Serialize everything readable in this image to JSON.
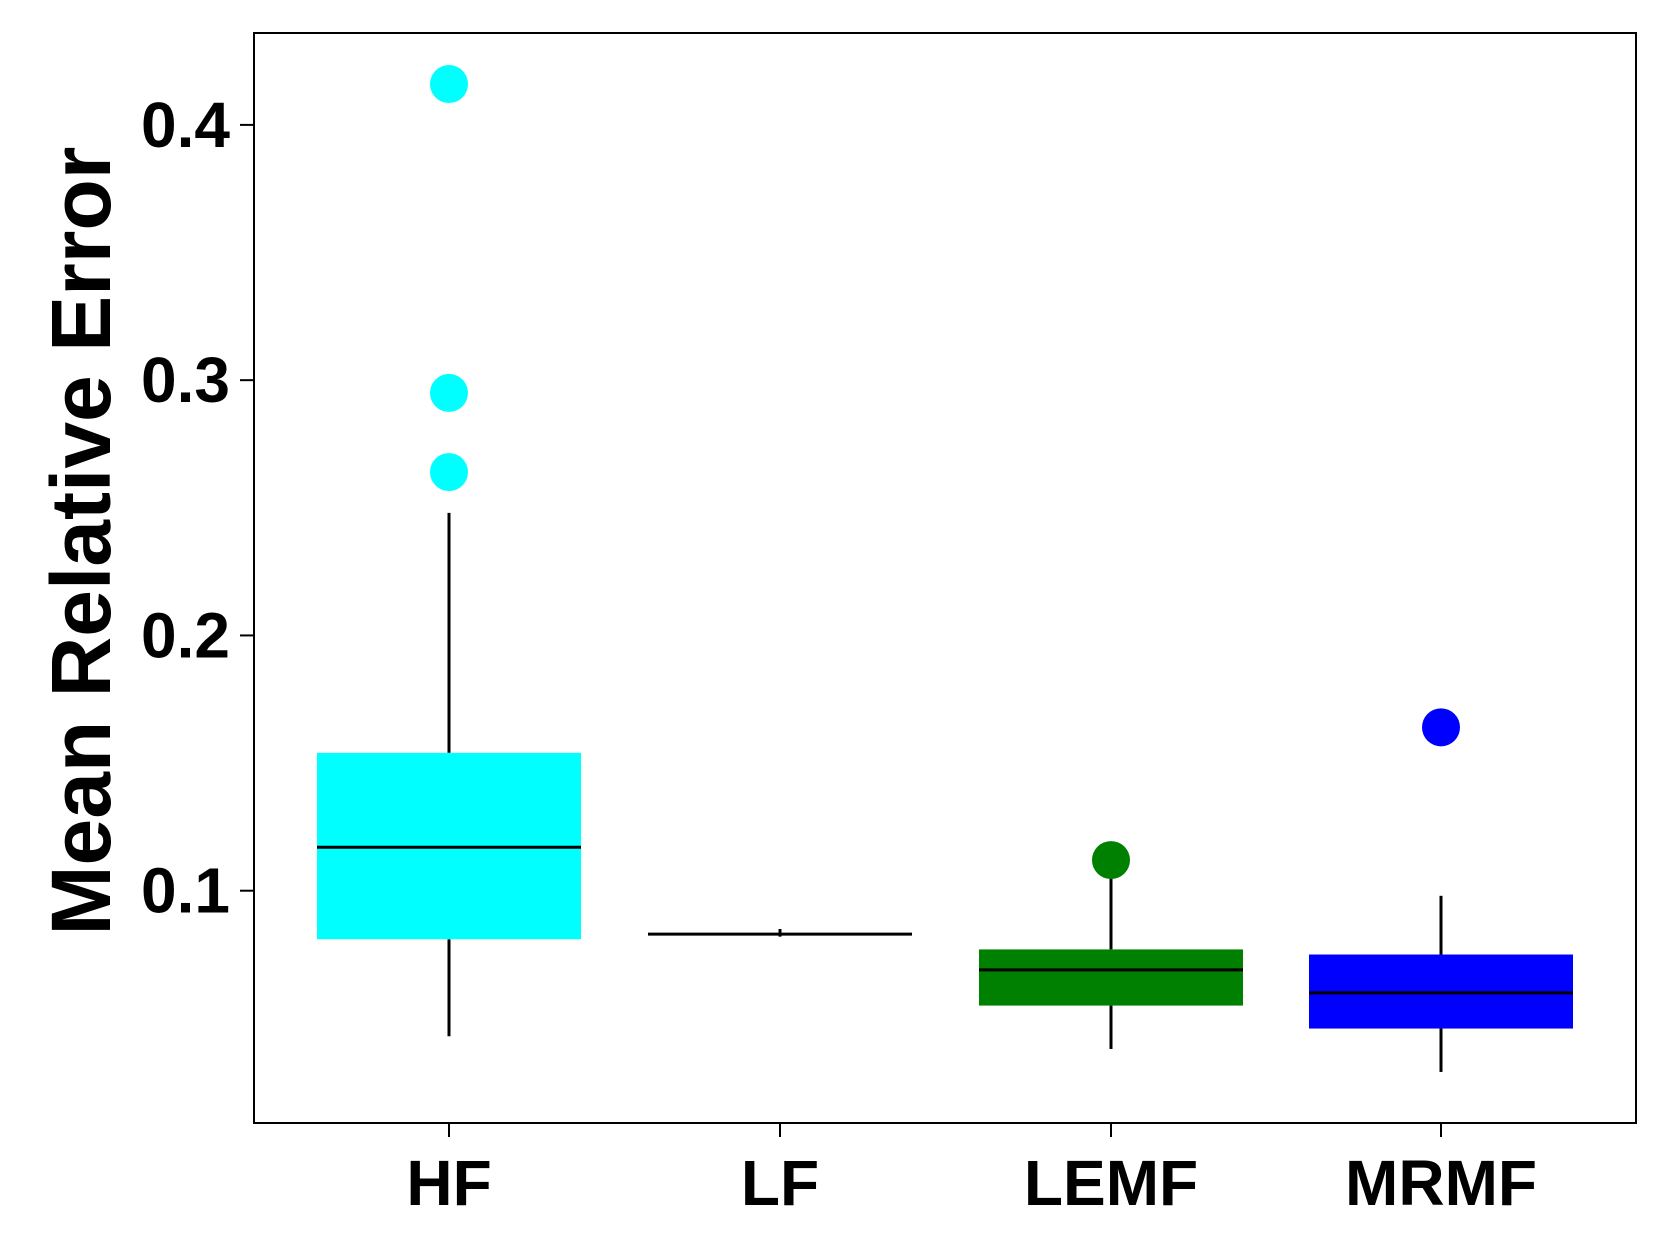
{
  "chart_data": {
    "type": "box",
    "title": "",
    "xlabel": "",
    "ylabel": "Mean Relative Error",
    "ylim": [
      0.009,
      0.436
    ],
    "y_ticks": [
      0.1,
      0.2,
      0.3,
      0.4
    ],
    "y_tick_labels": [
      "0.1",
      "0.2",
      "0.3",
      "0.4"
    ],
    "grid": false,
    "legend": "none",
    "categories": [
      "HF",
      "LF",
      "LEMF",
      "MRMF"
    ],
    "boxes": [
      {
        "category": "HF",
        "color": "#00ffff",
        "whisker_low": 0.043,
        "q1": 0.081,
        "median": 0.117,
        "q3": 0.154,
        "whisker_high": 0.248,
        "outliers": [
          0.264,
          0.295,
          0.416
        ]
      },
      {
        "category": "LF",
        "color": "#2d0a3a",
        "whisker_low": 0.082,
        "q1": 0.083,
        "median": 0.083,
        "q3": 0.083,
        "whisker_high": 0.085,
        "outliers": []
      },
      {
        "category": "LEMF",
        "color": "#008000",
        "whisker_low": 0.038,
        "q1": 0.055,
        "median": 0.069,
        "q3": 0.077,
        "whisker_high": 0.11,
        "outliers": [
          0.112
        ]
      },
      {
        "category": "MRMF",
        "color": "#0000ff",
        "whisker_low": 0.029,
        "q1": 0.046,
        "median": 0.06,
        "q3": 0.075,
        "whisker_high": 0.098,
        "outliers": [
          0.164
        ]
      }
    ]
  }
}
